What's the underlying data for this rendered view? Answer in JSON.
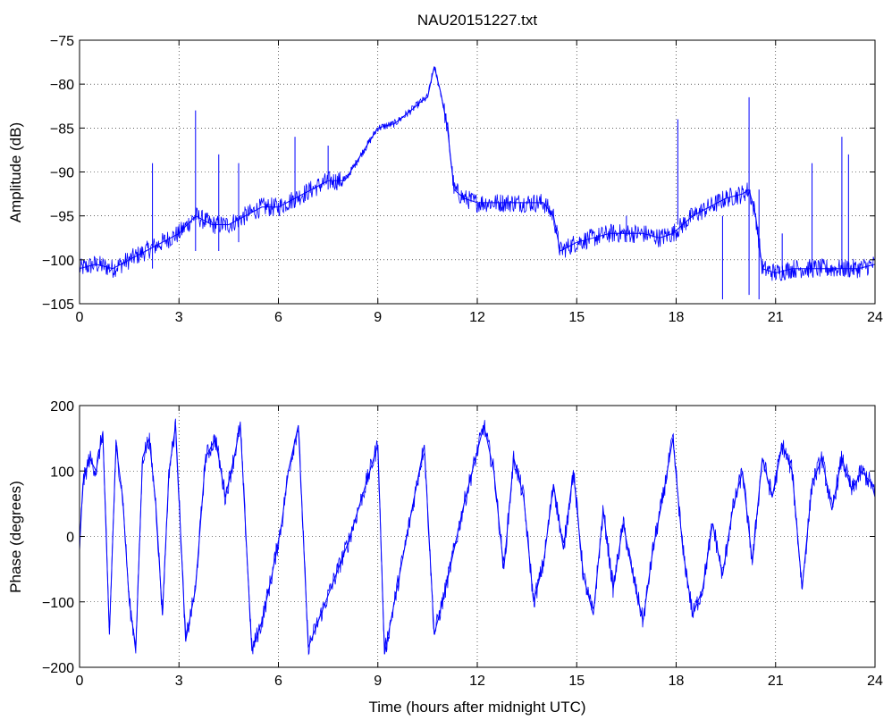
{
  "figure": {
    "background": "#ffffff",
    "line_color": "#0000ff",
    "grid": "dotted"
  },
  "chart_data": [
    {
      "type": "line",
      "title": "NAU20151227.txt",
      "xlabel": "",
      "ylabel": "Amplitude (dB)",
      "xlim": [
        0,
        24
      ],
      "ylim": [
        -105,
        -75
      ],
      "xticks": [
        0,
        3,
        6,
        9,
        12,
        15,
        18,
        21,
        24
      ],
      "yticks": [
        -105,
        -100,
        -95,
        -90,
        -85,
        -80,
        -75
      ],
      "xtick_labels": [
        "0",
        "3",
        "6",
        "9",
        "12",
        "15",
        "18",
        "21",
        "24"
      ],
      "ytick_labels": [
        "−105",
        "−100",
        "−95",
        "−90",
        "−85",
        "−80",
        "−75"
      ],
      "grid": true,
      "series": [
        {
          "color": "#0000ff",
          "x": [
            0,
            0.5,
            1,
            1.5,
            2,
            2.5,
            3,
            3.5,
            4,
            4.5,
            5,
            5.5,
            6,
            6.5,
            7,
            7.5,
            8,
            8.5,
            9,
            9.5,
            10,
            10.3,
            10.5,
            10.7,
            10.9,
            11.1,
            11.3,
            11.6,
            12,
            12.5,
            13,
            13.5,
            14,
            14.3,
            14.5,
            15,
            15.5,
            16,
            16.5,
            17,
            17.5,
            17.9,
            18.5,
            19,
            19.5,
            20,
            20.2,
            20.4,
            20.6,
            21,
            21.5,
            22,
            22.5,
            23,
            23.5,
            24
          ],
          "values": [
            -101,
            -100.5,
            -101,
            -100,
            -99,
            -98,
            -97,
            -95,
            -96,
            -96,
            -95,
            -94,
            -94,
            -93,
            -92,
            -91,
            -91,
            -88,
            -85,
            -84.5,
            -83,
            -82,
            -81.5,
            -78,
            -81,
            -85,
            -92,
            -93,
            -93.5,
            -93.5,
            -93.5,
            -93.5,
            -93.5,
            -95,
            -99,
            -98,
            -97.5,
            -97,
            -97,
            -97,
            -97.5,
            -97,
            -95,
            -94,
            -93,
            -92.5,
            -92,
            -95,
            -101,
            -101.5,
            -101,
            -101,
            -101,
            -101,
            -101,
            -100.5
          ]
        }
      ],
      "spikes": [
        {
          "x": 2.2,
          "min": -101,
          "max": -89
        },
        {
          "x": 3.5,
          "min": -99,
          "max": -83
        },
        {
          "x": 4.2,
          "min": -99,
          "max": -88
        },
        {
          "x": 4.8,
          "min": -98,
          "max": -89
        },
        {
          "x": 6.5,
          "min": -94,
          "max": -86
        },
        {
          "x": 7.5,
          "min": -92,
          "max": -87
        },
        {
          "x": 16.5,
          "min": -98,
          "max": -95
        },
        {
          "x": 18.05,
          "min": -96,
          "max": -84
        },
        {
          "x": 19.4,
          "min": -104.5,
          "max": -95
        },
        {
          "x": 20.2,
          "min": -104,
          "max": -81.5
        },
        {
          "x": 20.5,
          "min": -104.5,
          "max": -92
        },
        {
          "x": 21.2,
          "min": -101,
          "max": -97
        },
        {
          "x": 22.1,
          "min": -101,
          "max": -89
        },
        {
          "x": 23.0,
          "min": -101,
          "max": -86
        },
        {
          "x": 23.2,
          "min": -101,
          "max": -88
        }
      ]
    },
    {
      "type": "line",
      "title": "",
      "xlabel": "Time (hours after midnight UTC)",
      "ylabel": "Phase (degrees)",
      "xlim": [
        0,
        24
      ],
      "ylim": [
        -200,
        200
      ],
      "xticks": [
        0,
        3,
        6,
        9,
        12,
        15,
        18,
        21,
        24
      ],
      "yticks": [
        -200,
        -100,
        0,
        100,
        200
      ],
      "xtick_labels": [
        "0",
        "3",
        "6",
        "9",
        "12",
        "15",
        "18",
        "21",
        "24"
      ],
      "ytick_labels": [
        "−200",
        "−100",
        "0",
        "100",
        "200"
      ],
      "grid": true,
      "wrap": [
        -180,
        180
      ],
      "series": [
        {
          "color": "#0000ff",
          "x": [
            0,
            0.1,
            0.3,
            0.5,
            0.7,
            0.9,
            1.1,
            1.3,
            1.5,
            1.7,
            1.9,
            2.1,
            2.3,
            2.5,
            2.7,
            2.9,
            3.2,
            3.5,
            3.8,
            4.1,
            4.4,
            4.7,
            4.85,
            5.2,
            5.5,
            5.8,
            6.1,
            6.3,
            6.6,
            6.9,
            7.2,
            7.5,
            7.8,
            8.1,
            8.4,
            8.7,
            9.0,
            9.2,
            9.5,
            9.8,
            10.1,
            10.4,
            10.7,
            11.0,
            11.3,
            11.6,
            11.9,
            12.2,
            12.5,
            12.8,
            13.1,
            13.4,
            13.7,
            14.0,
            14.3,
            14.6,
            14.9,
            15.2,
            15.5,
            15.8,
            16.1,
            16.4,
            16.7,
            17.0,
            17.3,
            17.6,
            17.9,
            18.2,
            18.5,
            18.8,
            19.1,
            19.4,
            19.7,
            20.0,
            20.3,
            20.6,
            20.9,
            21.2,
            21.5,
            21.8,
            22.1,
            22.4,
            22.7,
            23.0,
            23.3,
            23.6,
            23.9,
            24
          ],
          "values": [
            -20,
            80,
            120,
            100,
            160,
            -150,
            140,
            60,
            -100,
            -170,
            120,
            150,
            50,
            -120,
            100,
            170,
            -160,
            -80,
            120,
            150,
            60,
            130,
            170,
            -175,
            -130,
            -60,
            20,
            100,
            170,
            -170,
            -130,
            -90,
            -50,
            -10,
            40,
            90,
            140,
            -180,
            -100,
            -20,
            60,
            140,
            -150,
            -90,
            -20,
            50,
            110,
            170,
            100,
            -50,
            120,
            60,
            -100,
            -40,
            80,
            -20,
            100,
            -60,
            -120,
            40,
            -80,
            20,
            -60,
            -130,
            -20,
            60,
            150,
            -20,
            -120,
            -80,
            20,
            -60,
            40,
            100,
            -40,
            120,
            60,
            140,
            100,
            -80,
            80,
            120,
            40,
            120,
            70,
            100,
            80,
            60
          ]
        }
      ]
    }
  ]
}
